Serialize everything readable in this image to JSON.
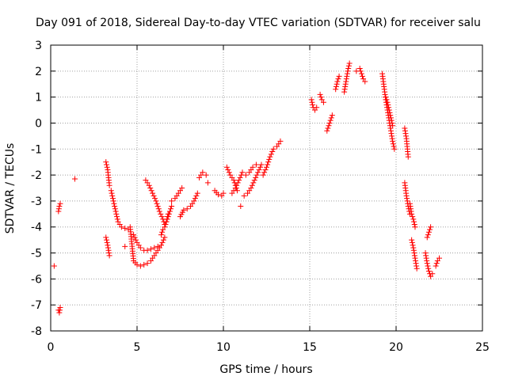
{
  "chart_data": {
    "type": "scatter",
    "title": "Day 091 of 2018, Sidereal Day-to-day VTEC variation (SDTVAR) for receiver salu",
    "xlabel": "GPS time / hours",
    "ylabel": "SDTVAR / TECUs",
    "xlim": [
      0,
      25
    ],
    "ylim": [
      -8,
      3
    ],
    "xticks": [
      0,
      5,
      10,
      15,
      20,
      25
    ],
    "yticks": [
      -8,
      -7,
      -6,
      -5,
      -4,
      -3,
      -2,
      -1,
      0,
      1,
      2,
      3
    ],
    "grid": true,
    "marker": "+",
    "color": "#ff0000",
    "segments": [
      {
        "x": [
          0.2
        ],
        "y": [
          -5.5
        ]
      },
      {
        "x": [
          0.45,
          0.5,
          0.55
        ],
        "y": [
          -7.2,
          -7.3,
          -7.1
        ]
      },
      {
        "x": [
          0.45,
          0.5,
          0.55
        ],
        "y": [
          -3.4,
          -3.2,
          -3.1
        ]
      },
      {
        "x": [
          1.4
        ],
        "y": [
          -2.15
        ]
      },
      {
        "x": [
          3.2,
          3.3,
          3.35,
          3.4
        ],
        "y": [
          -1.5,
          -1.8,
          -2.1,
          -2.4
        ]
      },
      {
        "x": [
          3.2,
          3.3,
          3.4
        ],
        "y": [
          -4.4,
          -4.7,
          -5.1
        ]
      },
      {
        "x": [
          3.5,
          3.7,
          3.9,
          4.1,
          4.3,
          4.5
        ],
        "y": [
          -2.6,
          -3.2,
          -3.8,
          -4.0,
          -4.05,
          -4.1
        ]
      },
      {
        "x": [
          4.3
        ],
        "y": [
          -4.75
        ]
      },
      {
        "x": [
          4.6,
          4.8,
          5.0,
          5.2,
          5.4,
          5.6,
          5.8,
          6.0,
          6.2,
          6.4,
          6.6
        ],
        "y": [
          -4.0,
          -5.3,
          -5.45,
          -5.5,
          -5.45,
          -5.4,
          -5.3,
          -5.1,
          -4.9,
          -4.7,
          -4.4
        ]
      },
      {
        "x": [
          4.8,
          5.0,
          5.2,
          5.4,
          5.6,
          5.8,
          6.0,
          6.2
        ],
        "y": [
          -4.3,
          -4.6,
          -4.8,
          -4.9,
          -4.9,
          -4.85,
          -4.8,
          -4.75
        ]
      },
      {
        "x": [
          5.5,
          5.7,
          5.9,
          6.1,
          6.3,
          6.5,
          6.6,
          6.7,
          6.8,
          6.9,
          7.0
        ],
        "y": [
          -2.2,
          -2.4,
          -2.7,
          -3.0,
          -3.4,
          -3.7,
          -3.9,
          -3.8,
          -3.6,
          -3.4,
          -3.2
        ]
      },
      {
        "x": [
          6.4,
          6.5,
          6.6,
          6.7,
          6.8
        ],
        "y": [
          -4.3,
          -4.1,
          -4.0,
          -3.8,
          -3.5
        ]
      },
      {
        "x": [
          7.0,
          7.2,
          7.4,
          7.6
        ],
        "y": [
          -3.0,
          -2.9,
          -2.7,
          -2.5
        ]
      },
      {
        "x": [
          7.5,
          7.7,
          7.9,
          8.1,
          8.3,
          8.5
        ],
        "y": [
          -3.6,
          -3.35,
          -3.3,
          -3.2,
          -3.0,
          -2.7
        ]
      },
      {
        "x": [
          8.6,
          8.8,
          9.0
        ],
        "y": [
          -2.1,
          -1.9,
          -2.0
        ]
      },
      {
        "x": [
          9.1
        ],
        "y": [
          -2.3
        ]
      },
      {
        "x": [
          9.5,
          9.7,
          9.9,
          10.0
        ],
        "y": [
          -2.6,
          -2.75,
          -2.8,
          -2.7
        ]
      },
      {
        "x": [
          10.2,
          10.4,
          10.6,
          10.8
        ],
        "y": [
          -1.7,
          -2.0,
          -2.2,
          -2.6
        ]
      },
      {
        "x": [
          10.5,
          10.7,
          10.9,
          11.1
        ],
        "y": [
          -2.7,
          -2.5,
          -2.2,
          -1.9
        ]
      },
      {
        "x": [
          11.0
        ],
        "y": [
          -3.2
        ]
      },
      {
        "x": [
          11.2,
          11.4,
          11.6,
          11.8,
          12.0,
          12.2
        ],
        "y": [
          -2.8,
          -2.7,
          -2.5,
          -2.2,
          -1.9,
          -1.6
        ]
      },
      {
        "x": [
          11.3,
          11.5,
          11.7,
          11.9
        ],
        "y": [
          -2.0,
          -1.9,
          -1.7,
          -1.6
        ]
      },
      {
        "x": [
          12.3,
          12.5,
          12.7,
          12.9,
          13.1,
          13.3
        ],
        "y": [
          -2.0,
          -1.7,
          -1.3,
          -1.0,
          -0.9,
          -0.7
        ]
      },
      {
        "x": [
          15.1,
          15.2,
          15.3,
          15.4
        ],
        "y": [
          0.9,
          0.6,
          0.5,
          0.6
        ]
      },
      {
        "x": [
          15.6,
          15.7,
          15.8
        ],
        "y": [
          1.1,
          0.9,
          0.8
        ]
      },
      {
        "x": [
          16.0,
          16.1,
          16.2,
          16.3
        ],
        "y": [
          -0.3,
          -0.1,
          0.1,
          0.3
        ]
      },
      {
        "x": [
          16.5,
          16.6,
          16.7
        ],
        "y": [
          1.3,
          1.6,
          1.8
        ]
      },
      {
        "x": [
          17.0,
          17.1,
          17.2,
          17.3
        ],
        "y": [
          1.2,
          1.6,
          2.0,
          2.3
        ]
      },
      {
        "x": [
          17.7,
          17.9,
          18.0,
          18.1,
          18.2
        ],
        "y": [
          2.0,
          2.1,
          1.9,
          1.7,
          1.6
        ]
      },
      {
        "x": [
          19.2,
          19.3,
          19.4,
          19.5,
          19.6,
          19.7,
          19.8,
          19.9
        ],
        "y": [
          1.9,
          1.4,
          0.9,
          0.5,
          0.1,
          -0.3,
          -0.7,
          -1.0
        ]
      },
      {
        "x": [
          19.4,
          19.5,
          19.6,
          19.7,
          19.8
        ],
        "y": [
          1.0,
          0.8,
          0.5,
          0.2,
          -0.1
        ]
      },
      {
        "x": [
          20.5,
          20.6,
          20.7
        ],
        "y": [
          -0.2,
          -0.6,
          -1.3
        ]
      },
      {
        "x": [
          20.5,
          20.6,
          20.7,
          20.8
        ],
        "y": [
          -2.3,
          -2.8,
          -3.2,
          -3.5
        ]
      },
      {
        "x": [
          20.8,
          20.9,
          21.0,
          21.1
        ],
        "y": [
          -3.1,
          -3.5,
          -3.7,
          -4.0
        ]
      },
      {
        "x": [
          20.9,
          21.0,
          21.1,
          21.2
        ],
        "y": [
          -4.5,
          -4.8,
          -5.2,
          -5.6
        ]
      },
      {
        "x": [
          21.7,
          21.8,
          21.9,
          22.0,
          22.1
        ],
        "y": [
          -5.0,
          -5.4,
          -5.7,
          -5.9,
          -5.8
        ]
      },
      {
        "x": [
          21.8,
          21.9,
          22.0
        ],
        "y": [
          -4.4,
          -4.2,
          -4.0
        ]
      },
      {
        "x": [
          22.3,
          22.4,
          22.5
        ],
        "y": [
          -5.5,
          -5.3,
          -5.2
        ]
      }
    ]
  }
}
